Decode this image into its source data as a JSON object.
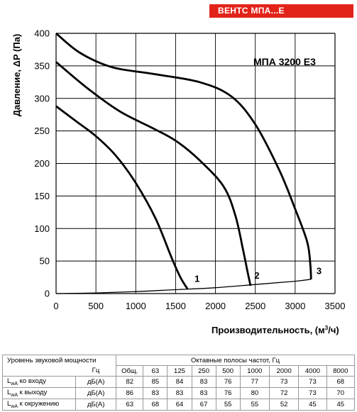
{
  "brand_label": "ВЕНТС МПА...Е",
  "chart_data": {
    "type": "line",
    "title": "МПА 3200 Е3",
    "xlabel": "Производительность, (м",
    "xlabel_sup": "3",
    "xlabel_tail": "/ч)",
    "ylabel": "Давление, ΔP (Па)",
    "xlim": [
      0,
      3500
    ],
    "ylim": [
      0,
      400
    ],
    "xticks": [
      "0",
      "500",
      "1000",
      "1500",
      "2000",
      "2500",
      "3000",
      "3500"
    ],
    "yticks": [
      "0",
      "50",
      "100",
      "150",
      "200",
      "250",
      "300",
      "350",
      "400"
    ],
    "grid": true,
    "series": [
      {
        "name": "1",
        "points": [
          [
            0,
            288
          ],
          [
            250,
            265
          ],
          [
            500,
            242
          ],
          [
            750,
            212
          ],
          [
            1000,
            170
          ],
          [
            1250,
            115
          ],
          [
            1450,
            55
          ],
          [
            1560,
            25
          ],
          [
            1650,
            7
          ]
        ]
      },
      {
        "name": "2",
        "points": [
          [
            0,
            356
          ],
          [
            400,
            315
          ],
          [
            800,
            280
          ],
          [
            1200,
            255
          ],
          [
            1500,
            235
          ],
          [
            1800,
            205
          ],
          [
            2100,
            165
          ],
          [
            2250,
            120
          ],
          [
            2350,
            65
          ],
          [
            2400,
            35
          ],
          [
            2440,
            12
          ]
        ]
      },
      {
        "name": "3",
        "points": [
          [
            0,
            400
          ],
          [
            300,
            370
          ],
          [
            700,
            348
          ],
          [
            1200,
            338
          ],
          [
            1800,
            325
          ],
          [
            2200,
            303
          ],
          [
            2500,
            260
          ],
          [
            2800,
            190
          ],
          [
            3000,
            130
          ],
          [
            3150,
            80
          ],
          [
            3190,
            45
          ],
          [
            3200,
            22
          ]
        ]
      }
    ],
    "system_curve": [
      [
        0,
        0
      ],
      [
        500,
        1
      ],
      [
        1000,
        3
      ],
      [
        1500,
        6
      ],
      [
        2000,
        9
      ],
      [
        2500,
        14
      ],
      [
        3000,
        19
      ],
      [
        3200,
        22
      ]
    ],
    "curve_labels": [
      {
        "text": "1",
        "x": 1770,
        "y": 18
      },
      {
        "text": "2",
        "x": 2520,
        "y": 23
      },
      {
        "text": "3",
        "x": 3300,
        "y": 30
      }
    ]
  },
  "sound_table": {
    "title": "Уровень звуковой мощности",
    "octave_title": "Октавные полосы частот, Гц",
    "unit_header": "Гц",
    "columns": [
      "Общ.",
      "63",
      "125",
      "250",
      "500",
      "1000",
      "2000",
      "4000",
      "8000"
    ],
    "rows": [
      {
        "prefix": "L",
        "sub": "wA",
        "label": " ко входу",
        "unit": "дБ(А)",
        "values": [
          "82",
          "85",
          "84",
          "83",
          "76",
          "77",
          "73",
          "73",
          "68"
        ]
      },
      {
        "prefix": "L",
        "sub": "wA",
        "label": " к выходу",
        "unit": "дБ(А)",
        "values": [
          "86",
          "83",
          "83",
          "83",
          "76",
          "80",
          "72",
          "73",
          "70"
        ]
      },
      {
        "prefix": "L",
        "sub": "wA",
        "label": " к окружению",
        "unit": "дБ(А)",
        "values": [
          "63",
          "68",
          "64",
          "67",
          "55",
          "55",
          "52",
          "45",
          "45"
        ]
      }
    ]
  }
}
